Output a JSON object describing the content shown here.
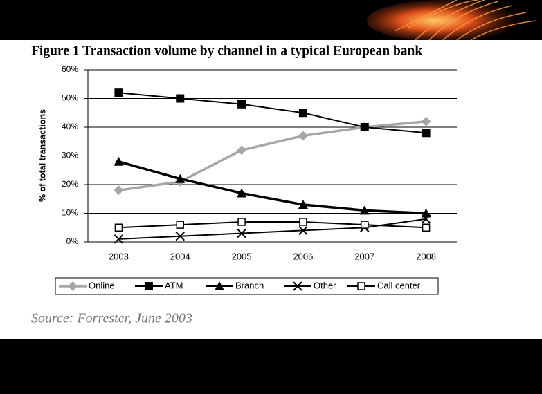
{
  "chart_data": {
    "type": "line",
    "title": "Figure 1 Transaction volume by channel in a typical European bank",
    "ylabel": "% of total transactions",
    "source": "Source: Forrester, June 2003",
    "categories": [
      "2003",
      "2004",
      "2005",
      "2006",
      "2007",
      "2008"
    ],
    "series": [
      {
        "name": "Online",
        "color": "#a6a6a6",
        "marker": "diamond",
        "values": [
          18,
          21,
          32,
          37,
          40,
          42
        ]
      },
      {
        "name": "ATM",
        "color": "#000000",
        "marker": "square",
        "values": [
          52,
          50,
          48,
          45,
          40,
          38
        ]
      },
      {
        "name": "Branch",
        "color": "#000000",
        "marker": "triangle",
        "values": [
          28,
          22,
          17,
          13,
          11,
          10
        ]
      },
      {
        "name": "Other",
        "color": "#000000",
        "marker": "x",
        "values": [
          1,
          2,
          3,
          4,
          5,
          8
        ]
      },
      {
        "name": "Call center",
        "color": "#000000",
        "marker": "open-square",
        "values": [
          5,
          6,
          7,
          7,
          6,
          5
        ]
      }
    ],
    "ylim": [
      0,
      60
    ],
    "yticks": [
      {
        "value": 0,
        "label": "0%"
      },
      {
        "value": 10,
        "label": "10%"
      },
      {
        "value": 20,
        "label": "20%"
      },
      {
        "value": 30,
        "label": "30%"
      },
      {
        "value": 40,
        "label": "40%"
      },
      {
        "value": 50,
        "label": "50%"
      },
      {
        "value": 60,
        "label": "60%"
      }
    ],
    "grid": true,
    "legend": "bottom"
  }
}
